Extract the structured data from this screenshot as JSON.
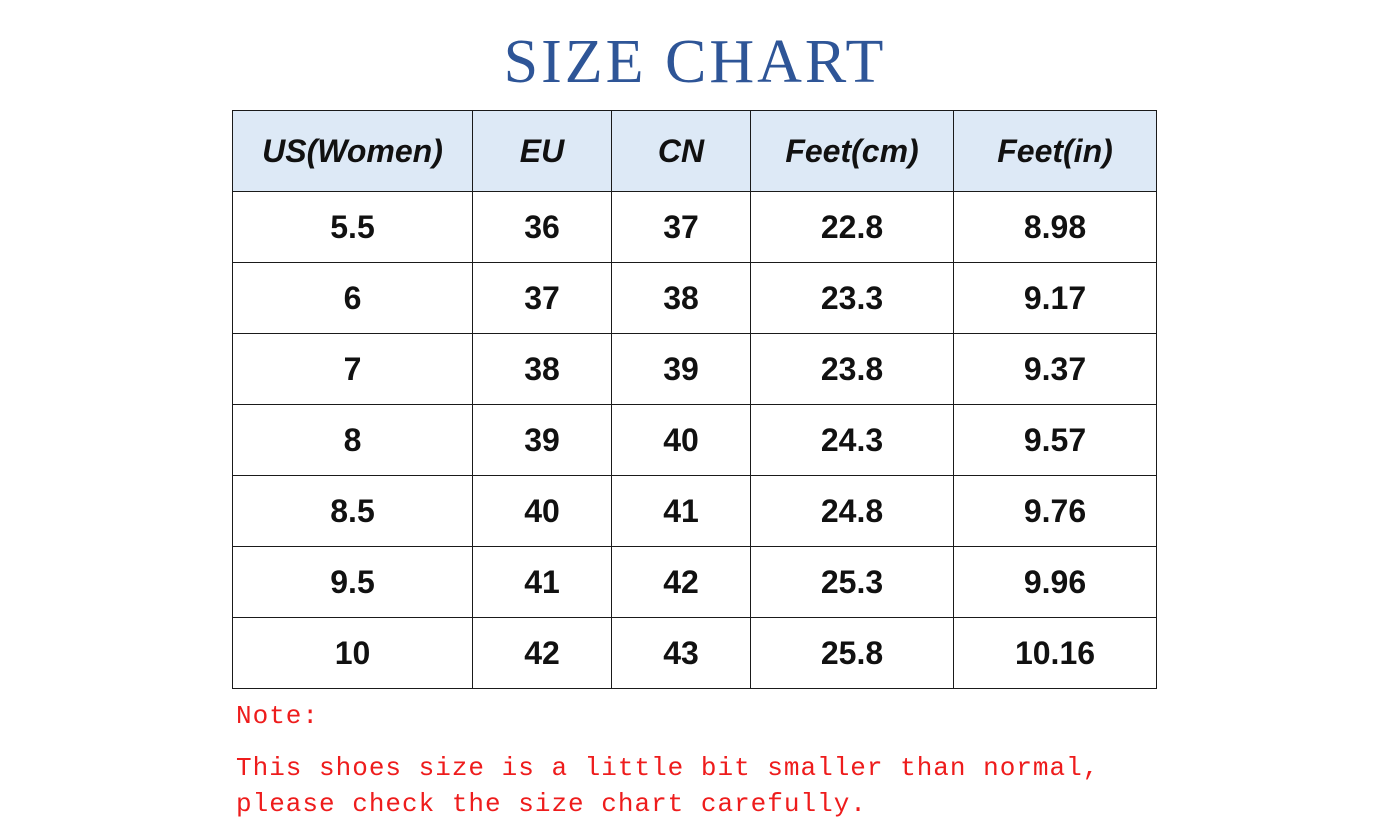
{
  "title": "SIZE CHART",
  "table": {
    "headers": [
      "US(Women)",
      "EU",
      "CN",
      "Feet(cm)",
      "Feet(in)"
    ],
    "rows": [
      [
        "5.5",
        "36",
        "37",
        "22.8",
        "8.98"
      ],
      [
        "6",
        "37",
        "38",
        "23.3",
        "9.17"
      ],
      [
        "7",
        "38",
        "39",
        "23.8",
        "9.37"
      ],
      [
        "8",
        "39",
        "40",
        "24.3",
        "9.57"
      ],
      [
        "8.5",
        "40",
        "41",
        "24.8",
        "9.76"
      ],
      [
        "9.5",
        "41",
        "42",
        "25.3",
        "9.96"
      ],
      [
        "10",
        "42",
        "43",
        "25.8",
        "10.16"
      ]
    ]
  },
  "note": {
    "label": "Note:",
    "line1": "This shoes size is a little bit smaller than normal,",
    "line2": "please check the size chart carefully."
  },
  "colors": {
    "title": "#2e5597",
    "header_bg": "#dde9f6",
    "note": "#ee1c1c"
  }
}
